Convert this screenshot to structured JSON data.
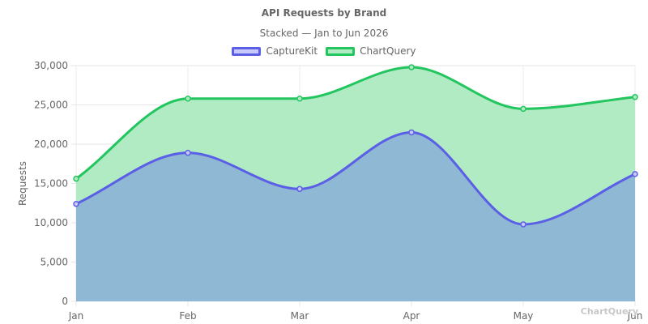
{
  "chart_data": {
    "type": "area",
    "stacked": true,
    "title": "API Requests by Brand",
    "subtitle": "Stacked — Jan to Jun 2026",
    "xlabel": "",
    "ylabel": "Requests",
    "categories": [
      "Jan",
      "Feb",
      "Mar",
      "Apr",
      "May",
      "Jun"
    ],
    "ylim": [
      0,
      30000
    ],
    "yticks": [
      0,
      5000,
      10000,
      15000,
      20000,
      25000,
      30000
    ],
    "ytick_labels": [
      "0",
      "5,000",
      "10,000",
      "15,000",
      "20,000",
      "25,000",
      "30,000"
    ],
    "grid": true,
    "legend": "top",
    "series": [
      {
        "name": "CaptureKit",
        "values": [
          12400,
          18900,
          14300,
          21500,
          9800,
          16200
        ],
        "line_color": "#5b5fe6",
        "fill_color": "#8fb8d4",
        "swatch_fill": "#c8c9f9"
      },
      {
        "name": "ChartQuery",
        "values": [
          3200,
          6900,
          11500,
          8300,
          14700,
          9800
        ],
        "line_color": "#22c55e",
        "fill_color": "#b0ebc4",
        "swatch_fill": "#b0ebc4"
      }
    ]
  },
  "watermark": "ChartQuery"
}
